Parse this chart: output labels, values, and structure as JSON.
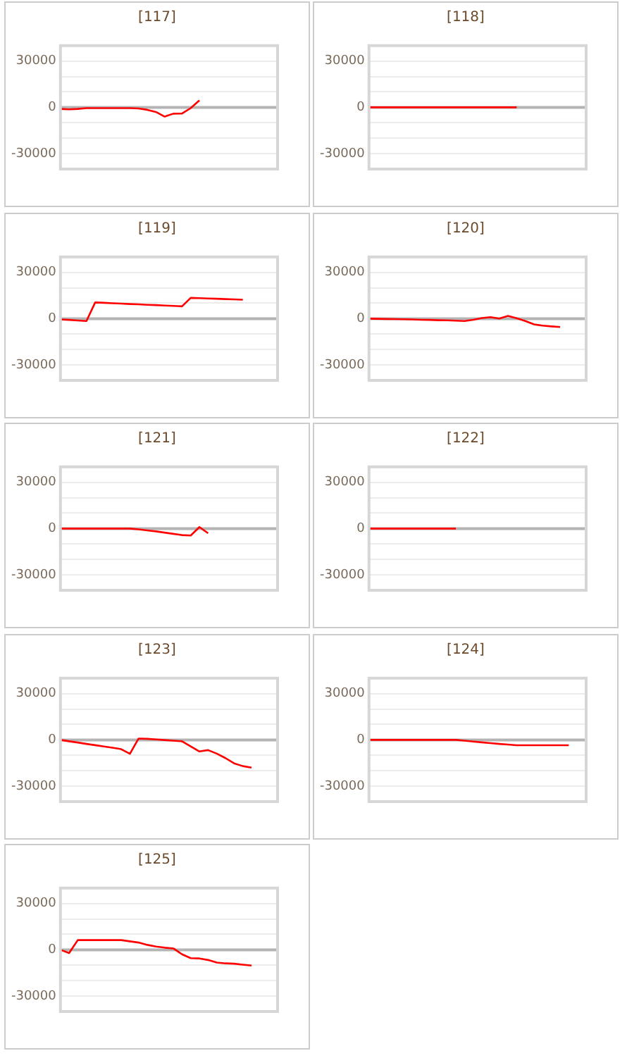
{
  "chart_data": [
    {
      "type": "line",
      "title": "[117]",
      "color": "#ff0000",
      "categories": [
        null,
        null,
        null,
        null,
        null,
        null,
        null,
        null,
        null,
        null,
        null,
        null,
        null,
        null,
        null,
        null,
        null,
        null,
        null,
        null,
        null,
        null,
        null,
        null,
        null,
        null
      ],
      "values": [
        -1000,
        -1300,
        -1000,
        -500,
        -500,
        -500,
        -500,
        -500,
        -500,
        -700,
        -1600,
        -3000,
        -6000,
        -4100,
        -4000,
        -500,
        4500,
        null,
        null,
        null,
        null,
        null,
        null,
        null,
        null,
        null
      ],
      "ylim": [
        -40000,
        40000
      ],
      "yticks": [
        {
          "value": -40000,
          "label": null
        },
        -30000,
        {
          "value": -20000,
          "label": null
        },
        {
          "value": -10000,
          "label": null
        },
        0,
        {
          "value": 10000,
          "label": null
        },
        {
          "value": 20000,
          "label": null
        },
        30000,
        {
          "value": 40000,
          "label": null
        }
      ],
      "grid": "y",
      "tick_labels": "y",
      "marker": "none",
      "ref_lines": [
        {
          "axis": "y",
          "value": 0,
          "color": "#b4b4b4"
        }
      ]
    },
    {
      "type": "line",
      "title": "[118]",
      "color": "#ff0000",
      "categories": [
        null,
        null,
        null,
        null,
        null,
        null,
        null,
        null,
        null,
        null,
        null,
        null,
        null,
        null,
        null,
        null,
        null,
        null,
        null,
        null,
        null,
        null,
        null,
        null,
        null,
        null
      ],
      "values": [
        0,
        0,
        0,
        0,
        0,
        0,
        0,
        0,
        0,
        0,
        0,
        0,
        0,
        0,
        0,
        0,
        0,
        0,
        null,
        null,
        null,
        null,
        null,
        null,
        null,
        null
      ],
      "ylim": [
        -40000,
        40000
      ],
      "yticks": [
        {
          "value": -40000,
          "label": null
        },
        -30000,
        {
          "value": -20000,
          "label": null
        },
        {
          "value": -10000,
          "label": null
        },
        0,
        {
          "value": 10000,
          "label": null
        },
        {
          "value": 20000,
          "label": null
        },
        30000,
        {
          "value": 40000,
          "label": null
        }
      ],
      "grid": "y",
      "tick_labels": "y",
      "marker": "none",
      "ref_lines": [
        {
          "axis": "y",
          "value": 0,
          "color": "#b4b4b4"
        }
      ]
    },
    {
      "type": "line",
      "title": "[119]",
      "color": "#ff0000",
      "categories": [
        null,
        null,
        null,
        null,
        null,
        null,
        null,
        null,
        null,
        null,
        null,
        null,
        null,
        null,
        null,
        null,
        null,
        null,
        null,
        null,
        null,
        null,
        null,
        null,
        null,
        null
      ],
      "values": [
        -500,
        -800,
        -1200,
        -1500,
        10500,
        10300,
        10000,
        9800,
        9500,
        9300,
        9000,
        8800,
        8500,
        8300,
        8000,
        13500,
        13300,
        13100,
        12900,
        12700,
        12500,
        12300,
        null,
        null,
        null,
        null
      ],
      "ylim": [
        -40000,
        40000
      ],
      "yticks": [
        {
          "value": -40000,
          "label": null
        },
        -30000,
        {
          "value": -20000,
          "label": null
        },
        {
          "value": -10000,
          "label": null
        },
        0,
        {
          "value": 10000,
          "label": null
        },
        {
          "value": 20000,
          "label": null
        },
        30000,
        {
          "value": 40000,
          "label": null
        }
      ],
      "grid": "y",
      "tick_labels": "y",
      "marker": "none",
      "ref_lines": [
        {
          "axis": "y",
          "value": 0,
          "color": "#b4b4b4"
        }
      ]
    },
    {
      "type": "line",
      "title": "[120]",
      "color": "#ff0000",
      "categories": [
        null,
        null,
        null,
        null,
        null,
        null,
        null,
        null,
        null,
        null,
        null,
        null,
        null,
        null,
        null,
        null,
        null,
        null,
        null,
        null,
        null,
        null,
        null,
        null,
        null,
        null
      ],
      "values": [
        0,
        -100,
        -200,
        -300,
        -400,
        -500,
        -700,
        -800,
        -1000,
        -1100,
        -1300,
        -1500,
        -700,
        400,
        1000,
        100,
        1800,
        300,
        -1500,
        -3700,
        -4500,
        -5000,
        -5400,
        null,
        null,
        null
      ],
      "ylim": [
        -40000,
        40000
      ],
      "yticks": [
        {
          "value": -40000,
          "label": null
        },
        -30000,
        {
          "value": -20000,
          "label": null
        },
        {
          "value": -10000,
          "label": null
        },
        0,
        {
          "value": 10000,
          "label": null
        },
        {
          "value": 20000,
          "label": null
        },
        30000,
        {
          "value": 40000,
          "label": null
        }
      ],
      "grid": "y",
      "tick_labels": "y",
      "marker": "none",
      "ref_lines": [
        {
          "axis": "y",
          "value": 0,
          "color": "#b4b4b4"
        }
      ]
    },
    {
      "type": "line",
      "title": "[121]",
      "color": "#ff0000",
      "categories": [
        null,
        null,
        null,
        null,
        null,
        null,
        null,
        null,
        null,
        null,
        null,
        null,
        null,
        null,
        null,
        null,
        null,
        null,
        null,
        null,
        null,
        null,
        null,
        null,
        null,
        null
      ],
      "values": [
        0,
        0,
        0,
        0,
        0,
        0,
        0,
        0,
        0,
        -500,
        -1200,
        -1800,
        -2600,
        -3400,
        -4200,
        -4500,
        1000,
        -3000,
        null,
        null,
        null,
        null,
        null,
        null,
        null,
        null
      ],
      "ylim": [
        -40000,
        40000
      ],
      "yticks": [
        {
          "value": -40000,
          "label": null
        },
        -30000,
        {
          "value": -20000,
          "label": null
        },
        {
          "value": -10000,
          "label": null
        },
        0,
        {
          "value": 10000,
          "label": null
        },
        {
          "value": 20000,
          "label": null
        },
        30000,
        {
          "value": 40000,
          "label": null
        }
      ],
      "grid": "y",
      "tick_labels": "y",
      "marker": "none",
      "ref_lines": [
        {
          "axis": "y",
          "value": 0,
          "color": "#b4b4b4"
        }
      ]
    },
    {
      "type": "line",
      "title": "[122]",
      "color": "#ff0000",
      "categories": [
        null,
        null,
        null,
        null,
        null,
        null,
        null,
        null,
        null,
        null,
        null,
        null,
        null,
        null,
        null,
        null,
        null,
        null,
        null,
        null,
        null,
        null,
        null,
        null,
        null,
        null
      ],
      "values": [
        0,
        0,
        0,
        0,
        0,
        0,
        0,
        0,
        0,
        0,
        0,
        null,
        null,
        null,
        null,
        null,
        null,
        null,
        null,
        null,
        null,
        null,
        null,
        null,
        null,
        null
      ],
      "ylim": [
        -40000,
        40000
      ],
      "yticks": [
        {
          "value": -40000,
          "label": null
        },
        -30000,
        {
          "value": -20000,
          "label": null
        },
        {
          "value": -10000,
          "label": null
        },
        0,
        {
          "value": 10000,
          "label": null
        },
        {
          "value": 20000,
          "label": null
        },
        30000,
        {
          "value": 40000,
          "label": null
        }
      ],
      "grid": "y",
      "tick_labels": "y",
      "marker": "none",
      "ref_lines": [
        {
          "axis": "y",
          "value": 0,
          "color": "#b4b4b4"
        }
      ]
    },
    {
      "type": "line",
      "title": "[123]",
      "color": "#ff0000",
      "categories": [
        null,
        null,
        null,
        null,
        null,
        null,
        null,
        null,
        null,
        null,
        null,
        null,
        null,
        null,
        null,
        null,
        null,
        null,
        null,
        null,
        null,
        null,
        null,
        null,
        null,
        null
      ],
      "values": [
        0,
        -900,
        -1700,
        -2600,
        -3400,
        -4300,
        -5100,
        -6000,
        -9000,
        900,
        700,
        300,
        -100,
        -500,
        -900,
        -4200,
        -7500,
        -6600,
        -8900,
        -11800,
        -15200,
        -17000,
        -18000,
        null,
        null,
        null
      ],
      "ylim": [
        -40000,
        40000
      ],
      "yticks": [
        {
          "value": -40000,
          "label": null
        },
        -30000,
        {
          "value": -20000,
          "label": null
        },
        {
          "value": -10000,
          "label": null
        },
        0,
        {
          "value": 10000,
          "label": null
        },
        {
          "value": 20000,
          "label": null
        },
        30000,
        {
          "value": 40000,
          "label": null
        }
      ],
      "grid": "y",
      "tick_labels": "y",
      "marker": "none",
      "ref_lines": [
        {
          "axis": "y",
          "value": 0,
          "color": "#b4b4b4"
        }
      ]
    },
    {
      "type": "line",
      "title": "[124]",
      "color": "#ff0000",
      "categories": [
        null,
        null,
        null,
        null,
        null,
        null,
        null,
        null,
        null,
        null,
        null,
        null,
        null,
        null,
        null,
        null,
        null,
        null,
        null,
        null,
        null,
        null,
        null,
        null,
        null,
        null
      ],
      "values": [
        0,
        0,
        0,
        0,
        0,
        0,
        0,
        0,
        0,
        0,
        0,
        -500,
        -1100,
        -1600,
        -2100,
        -2600,
        -3000,
        -3500,
        -3500,
        -3500,
        -3500,
        -3500,
        -3500,
        -3500,
        null,
        null
      ],
      "ylim": [
        -40000,
        40000
      ],
      "yticks": [
        {
          "value": -40000,
          "label": null
        },
        -30000,
        {
          "value": -20000,
          "label": null
        },
        {
          "value": -10000,
          "label": null
        },
        0,
        {
          "value": 10000,
          "label": null
        },
        {
          "value": 20000,
          "label": null
        },
        30000,
        {
          "value": 40000,
          "label": null
        }
      ],
      "grid": "y",
      "tick_labels": "y",
      "marker": "none",
      "ref_lines": [
        {
          "axis": "y",
          "value": 0,
          "color": "#b4b4b4"
        }
      ]
    },
    {
      "type": "line",
      "title": "[125]",
      "color": "#ff0000",
      "categories": [
        null,
        null,
        null,
        null,
        null,
        null,
        null,
        null,
        null,
        null,
        null,
        null,
        null,
        null,
        null,
        null,
        null,
        null,
        null,
        null,
        null,
        null,
        null,
        null,
        null,
        null
      ],
      "values": [
        0,
        -2100,
        6300,
        6300,
        6300,
        6300,
        6300,
        6300,
        5500,
        4700,
        3200,
        2100,
        1400,
        900,
        -2900,
        -5400,
        -5600,
        -6600,
        -8300,
        -8800,
        -9000,
        -9600,
        -10200,
        null,
        null,
        null
      ],
      "ylim": [
        -40000,
        40000
      ],
      "yticks": [
        {
          "value": -40000,
          "label": null
        },
        -30000,
        {
          "value": -20000,
          "label": null
        },
        {
          "value": -10000,
          "label": null
        },
        0,
        {
          "value": 10000,
          "label": null
        },
        {
          "value": 20000,
          "label": null
        },
        30000,
        {
          "value": 40000,
          "label": null
        }
      ],
      "grid": "y",
      "tick_labels": "y",
      "marker": "none",
      "ref_lines": [
        {
          "axis": "y",
          "value": 0,
          "color": "#b4b4b4"
        }
      ]
    }
  ]
}
